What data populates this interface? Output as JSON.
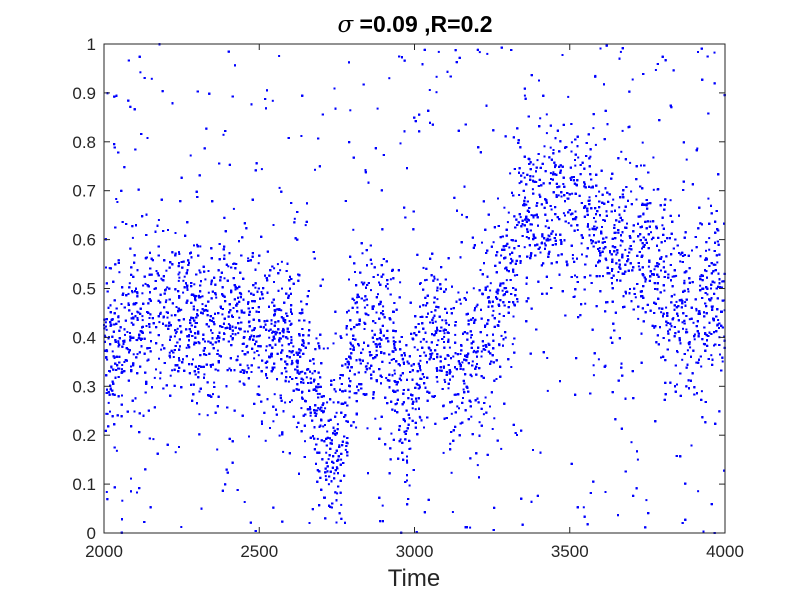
{
  "chart_data": {
    "type": "scatter",
    "title_symbol": "σ",
    "title_text": " =0.09 ,R=0.2",
    "xlabel": "Time",
    "ylabel": "",
    "xlim": [
      2000,
      4000
    ],
    "ylim": [
      0,
      1
    ],
    "x_ticks": [
      "2000",
      "2500",
      "3000",
      "3500",
      "4000"
    ],
    "y_ticks": [
      "0",
      "0.1",
      "0.2",
      "0.3",
      "0.4",
      "0.5",
      "0.6",
      "0.7",
      "0.8",
      "0.9",
      "1"
    ],
    "grid": false,
    "marker_color": "#0000ff",
    "series": [
      {
        "center_trend": {
          "x": [
            2000,
            2100,
            2200,
            2300,
            2400,
            2500,
            2600,
            2650,
            2700,
            2730,
            2760,
            2800,
            2850,
            2900,
            2950,
            2975,
            3000,
            3030,
            3060,
            3100,
            3150,
            3200,
            3250,
            3300,
            3350,
            3400,
            3450,
            3500,
            3550,
            3600,
            3650,
            3700,
            3750,
            3800,
            3850,
            3900,
            3950,
            4000
          ],
          "y": [
            0.36,
            0.42,
            0.44,
            0.42,
            0.43,
            0.42,
            0.4,
            0.33,
            0.22,
            0.15,
            0.2,
            0.38,
            0.44,
            0.42,
            0.35,
            0.22,
            0.3,
            0.38,
            0.4,
            0.36,
            0.33,
            0.37,
            0.44,
            0.55,
            0.63,
            0.64,
            0.66,
            0.68,
            0.66,
            0.62,
            0.6,
            0.58,
            0.56,
            0.52,
            0.46,
            0.44,
            0.48,
            0.52
          ]
        }
      }
    ]
  }
}
